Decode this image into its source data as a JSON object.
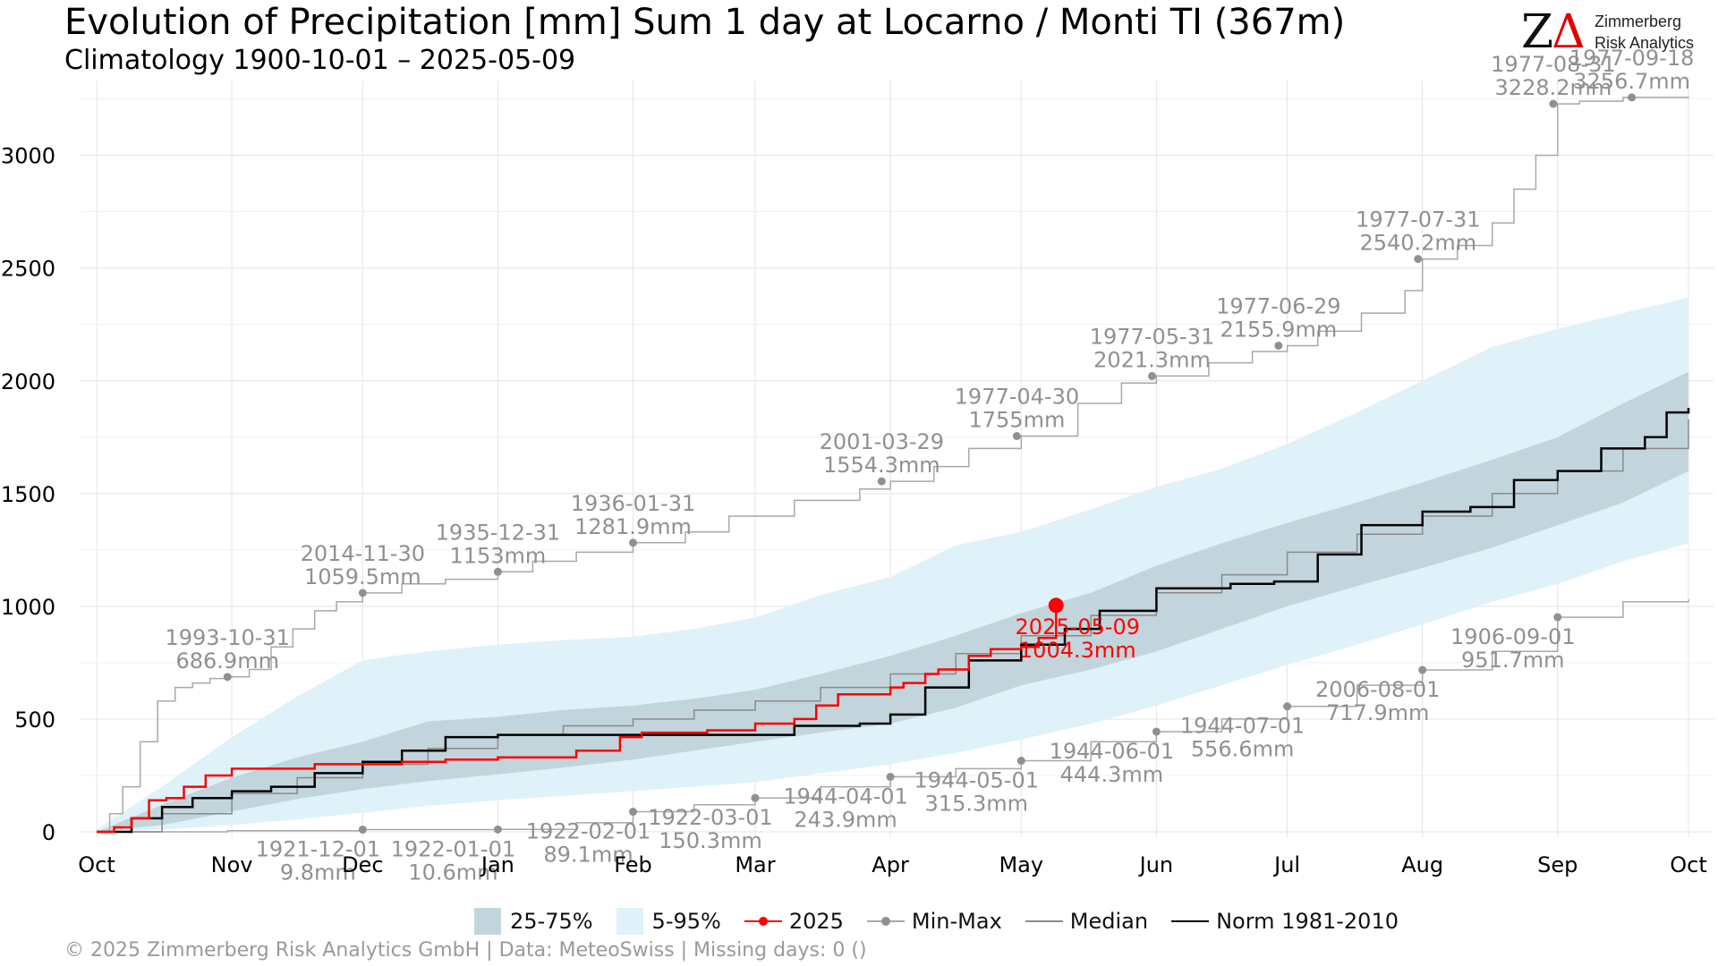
{
  "header": {
    "title": "Evolution of Precipitation [mm] Sum 1 day at Locarno / Monti  TI (367m)",
    "subtitle": "Climatology 1900-10-01 – 2025-05-09"
  },
  "logo": {
    "mark": "Z",
    "triangle": "Δ",
    "line1": "Zimmerberg",
    "line2": "Risk Analytics"
  },
  "footer": {
    "text": "©  2025 Zimmerberg Risk Analytics GmbH | Data: MeteoSwiss | Missing days: 0 ()"
  },
  "legend": {
    "iqr": "25-75%",
    "p90": "5-95%",
    "current": "2025",
    "minmax": "Min-Max",
    "median": "Median",
    "norm": "Norm 1981-2010"
  },
  "colors": {
    "band_5_95": "#dff1f9",
    "band_25_75": "#c2d5dc",
    "current": "#ff0000",
    "minmax": "#a8a8a8",
    "median": "#8a8a8a",
    "norm": "#000000",
    "annotation": "#909090",
    "grid": "#e4e4e4"
  },
  "chart_data": {
    "type": "line",
    "title": "Evolution of Precipitation [mm] Sum 1 day at Locarno / Monti  TI (367m)",
    "subtitle": "Climatology 1900-10-01 – 2025-05-09",
    "xlabel": "",
    "ylabel": "",
    "x_unit": "day of hydrological year (0 = Oct 1)",
    "xlim": [
      0,
      365
    ],
    "ylim": [
      0,
      3300
    ],
    "y_ticks": [
      0,
      500,
      1000,
      1500,
      2000,
      2500,
      3000
    ],
    "x_ticks": [
      {
        "day": 0,
        "label": "Oct"
      },
      {
        "day": 31,
        "label": "Nov"
      },
      {
        "day": 61,
        "label": "Dec"
      },
      {
        "day": 92,
        "label": "Jan"
      },
      {
        "day": 123,
        "label": "Feb"
      },
      {
        "day": 151,
        "label": "Mar"
      },
      {
        "day": 182,
        "label": "Apr"
      },
      {
        "day": 212,
        "label": "May"
      },
      {
        "day": 243,
        "label": "Jun"
      },
      {
        "day": 273,
        "label": "Jul"
      },
      {
        "day": 304,
        "label": "Aug"
      },
      {
        "day": 335,
        "label": "Sep"
      },
      {
        "day": 365,
        "label": "Oct"
      }
    ],
    "grid": true,
    "legend_position": "bottom",
    "band_5_95": {
      "x": [
        0,
        15,
        31,
        46,
        61,
        76,
        92,
        107,
        123,
        137,
        151,
        166,
        182,
        197,
        212,
        228,
        243,
        258,
        273,
        289,
        304,
        320,
        335,
        350,
        365
      ],
      "lower": [
        0,
        10,
        30,
        55,
        85,
        115,
        140,
        160,
        180,
        200,
        220,
        260,
        300,
        350,
        410,
        480,
        560,
        650,
        740,
        830,
        920,
        1020,
        1100,
        1200,
        1280
      ],
      "upper": [
        10,
        200,
        420,
        600,
        760,
        800,
        830,
        850,
        865,
        900,
        950,
        1050,
        1130,
        1270,
        1330,
        1430,
        1530,
        1610,
        1720,
        1860,
        2000,
        2150,
        2230,
        2300,
        2370
      ]
    },
    "band_25_75": {
      "x": [
        0,
        15,
        31,
        46,
        61,
        76,
        92,
        107,
        123,
        137,
        151,
        166,
        182,
        197,
        212,
        228,
        243,
        258,
        273,
        289,
        304,
        320,
        335,
        350,
        365
      ],
      "lower": [
        0,
        30,
        90,
        145,
        190,
        225,
        255,
        285,
        320,
        360,
        400,
        440,
        480,
        550,
        650,
        720,
        800,
        900,
        1000,
        1090,
        1170,
        1260,
        1360,
        1460,
        1600
      ],
      "upper": [
        0,
        120,
        240,
        330,
        400,
        490,
        510,
        540,
        560,
        590,
        630,
        700,
        780,
        870,
        970,
        1060,
        1180,
        1280,
        1370,
        1460,
        1550,
        1650,
        1750,
        1900,
        2040
      ]
    },
    "series": [
      {
        "name": "Min-Max",
        "kind": "max",
        "x": [
          0,
          3,
          6,
          10,
          14,
          18,
          22,
          26,
          30,
          35,
          40,
          45,
          50,
          55,
          61,
          70,
          80,
          92,
          100,
          110,
          123,
          135,
          145,
          160,
          175,
          182,
          192,
          200,
          212,
          225,
          235,
          243,
          255,
          265,
          273,
          280,
          290,
          300,
          304,
          312,
          320,
          325,
          330,
          335,
          340,
          350,
          365
        ],
        "y": [
          0,
          80,
          200,
          400,
          580,
          640,
          660,
          680,
          686.9,
          720,
          820,
          900,
          980,
          1020,
          1059.5,
          1100,
          1120,
          1153,
          1200,
          1240,
          1281.9,
          1330,
          1400,
          1470,
          1520,
          1554.3,
          1620,
          1700,
          1755,
          1900,
          1990,
          2021.3,
          2080,
          2130,
          2155.9,
          2220,
          2300,
          2400,
          2540.2,
          2600,
          2700,
          2850,
          3000,
          3228.2,
          3240,
          3256.7,
          3260
        ]
      },
      {
        "name": "Min-Max",
        "kind": "min",
        "x": [
          0,
          30,
          61,
          92,
          110,
          123,
          137,
          151,
          166,
          182,
          197,
          212,
          228,
          243,
          258,
          273,
          289,
          304,
          320,
          335,
          350,
          365
        ],
        "y": [
          0,
          5,
          9.8,
          10.6,
          40,
          89.1,
          120,
          150.3,
          200,
          243.9,
          280,
          315.3,
          400,
          444.3,
          500,
          556.6,
          650,
          717.9,
          800,
          951.7,
          1020,
          1030
        ]
      },
      {
        "name": "Median",
        "x": [
          0,
          15,
          31,
          46,
          61,
          76,
          92,
          107,
          123,
          137,
          151,
          166,
          182,
          197,
          212,
          228,
          243,
          258,
          273,
          289,
          304,
          320,
          335,
          350,
          365
        ],
        "y": [
          0,
          80,
          170,
          240,
          300,
          370,
          430,
          470,
          500,
          540,
          580,
          640,
          700,
          790,
          870,
          960,
          1060,
          1140,
          1240,
          1320,
          1400,
          1500,
          1600,
          1700,
          1830
        ]
      },
      {
        "name": "Norm 1981-2010",
        "x": [
          0,
          8,
          15,
          22,
          31,
          40,
          50,
          61,
          70,
          80,
          92,
          110,
          130,
          160,
          175,
          182,
          190,
          200,
          212,
          222,
          230,
          243,
          260,
          270,
          280,
          290,
          304,
          315,
          325,
          335,
          345,
          355,
          360,
          365
        ],
        "y": [
          0,
          60,
          110,
          150,
          180,
          200,
          260,
          310,
          360,
          420,
          430,
          430,
          430,
          470,
          480,
          520,
          640,
          760,
          830,
          900,
          980,
          1080,
          1100,
          1110,
          1230,
          1360,
          1420,
          1440,
          1560,
          1600,
          1700,
          1750,
          1860,
          1880
        ]
      },
      {
        "name": "2025",
        "x": [
          0,
          4,
          8,
          12,
          16,
          20,
          25,
          31,
          35,
          40,
          50,
          61,
          70,
          80,
          92,
          110,
          120,
          125,
          140,
          151,
          160,
          165,
          170,
          182,
          185,
          190,
          193,
          200,
          205,
          212,
          216,
          220
        ],
        "y": [
          0,
          20,
          60,
          140,
          150,
          200,
          250,
          280,
          280,
          280,
          300,
          300,
          310,
          320,
          330,
          360,
          420,
          440,
          450,
          480,
          500,
          560,
          610,
          640,
          660,
          700,
          720,
          780,
          810,
          820,
          860,
          1004.3
        ]
      }
    ],
    "current_point": {
      "date": "2025-05-09",
      "day": 220,
      "value": 1004.3,
      "label_date": "2025-05-09",
      "label_value": "1004.3mm"
    },
    "annotations_max": [
      {
        "date": "1993-10-31",
        "value": "686.9mm",
        "day": 30,
        "y": 686.9
      },
      {
        "date": "2014-11-30",
        "value": "1059.5mm",
        "day": 61,
        "y": 1059.5
      },
      {
        "date": "1935-12-31",
        "value": "1153mm",
        "day": 92,
        "y": 1153
      },
      {
        "date": "1936-01-31",
        "value": "1281.9mm",
        "day": 123,
        "y": 1281.9
      },
      {
        "date": "2001-03-29",
        "value": "1554.3mm",
        "day": 180,
        "y": 1554.3
      },
      {
        "date": "1977-04-30",
        "value": "1755mm",
        "day": 211,
        "y": 1755
      },
      {
        "date": "1977-05-31",
        "value": "2021.3mm",
        "day": 242,
        "y": 2021.3
      },
      {
        "date": "1977-06-29",
        "value": "2155.9mm",
        "day": 271,
        "y": 2155.9
      },
      {
        "date": "1977-07-31",
        "value": "2540.2mm",
        "day": 303,
        "y": 2540.2
      },
      {
        "date": "1977-08-31",
        "value": "3228.2mm",
        "day": 334,
        "y": 3228.2
      },
      {
        "date": "1977-09-18",
        "value": "3256.7mm",
        "day": 352,
        "y": 3256.7
      }
    ],
    "annotations_min": [
      {
        "date": "1921-12-01",
        "value": "9.8mm",
        "day": 61,
        "y": 9.8
      },
      {
        "date": "1922-01-01",
        "value": "10.6mm",
        "day": 92,
        "y": 10.6
      },
      {
        "date": "1922-02-01",
        "value": "89.1mm",
        "day": 123,
        "y": 89.1
      },
      {
        "date": "1922-03-01",
        "value": "150.3mm",
        "day": 151,
        "y": 150.3
      },
      {
        "date": "1944-04-01",
        "value": "243.9mm",
        "day": 182,
        "y": 243.9
      },
      {
        "date": "1944-05-01",
        "value": "315.3mm",
        "day": 212,
        "y": 315.3
      },
      {
        "date": "1944-06-01",
        "value": "444.3mm",
        "day": 243,
        "y": 444.3
      },
      {
        "date": "1944-07-01",
        "value": "556.6mm",
        "day": 273,
        "y": 556.6
      },
      {
        "date": "2006-08-01",
        "value": "717.9mm",
        "day": 304,
        "y": 717.9
      },
      {
        "date": "1906-09-01",
        "value": "951.7mm",
        "day": 335,
        "y": 951.7
      }
    ]
  }
}
